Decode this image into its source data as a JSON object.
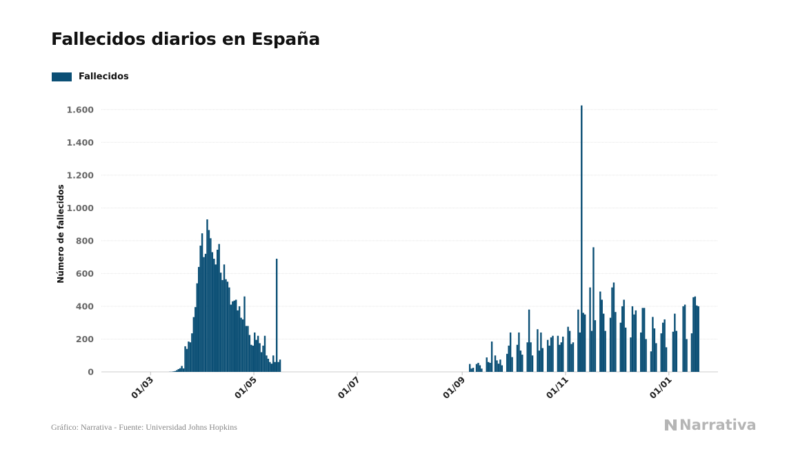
{
  "page": {
    "title": "Fallecidos diarios en España",
    "source": "Gráfico: Narrativa - Fuente: Universidad Johns Hopkins",
    "brand": "Narrativa"
  },
  "colors": {
    "bar": "#0b4f75",
    "grid": "#e4e4e4",
    "tick_text": "#666666",
    "brand": "#b5b5b5"
  },
  "chart_data": {
    "type": "bar",
    "title": "Fallecidos diarios en España",
    "xlabel": "",
    "ylabel": "Número de fallecidos",
    "legend": "top-left",
    "grid": true,
    "ylim": [
      0,
      1700
    ],
    "yticks": [
      0,
      200,
      400,
      600,
      800,
      1000,
      1200,
      1400,
      1600
    ],
    "ytick_labels": [
      "0",
      "200",
      "400",
      "600",
      "800",
      "1.000",
      "1.200",
      "1.400",
      "1.600"
    ],
    "xlim": [
      "2020-02-01",
      "2021-01-30"
    ],
    "xticks": [
      {
        "date": "2020-03-01",
        "label": "01/03"
      },
      {
        "date": "2020-05-01",
        "label": "01/05"
      },
      {
        "date": "2020-07-01",
        "label": "01/07"
      },
      {
        "date": "2020-09-01",
        "label": "01/09"
      },
      {
        "date": "2020-11-01",
        "label": "01/11"
      },
      {
        "date": "2021-01-01",
        "label": "01/01"
      }
    ],
    "series": [
      {
        "name": "Fallecidos",
        "start_date": "2020-02-01",
        "values": [
          0,
          0,
          0,
          0,
          0,
          0,
          0,
          0,
          0,
          0,
          0,
          0,
          0,
          0,
          0,
          0,
          0,
          0,
          0,
          0,
          0,
          0,
          0,
          0,
          0,
          0,
          0,
          0,
          0,
          0,
          0,
          0,
          0,
          0,
          0,
          0,
          0,
          0,
          0,
          0,
          1,
          1,
          3,
          5,
          10,
          17,
          22,
          36,
          21,
          156,
          140,
          185,
          180,
          235,
          334,
          395,
          540,
          640,
          770,
          845,
          700,
          720,
          930,
          865,
          815,
          730,
          690,
          655,
          745,
          780,
          605,
          560,
          655,
          565,
          550,
          515,
          410,
          430,
          435,
          440,
          375,
          400,
          330,
          320,
          460,
          280,
          280,
          225,
          165,
          160,
          240,
          195,
          220,
          175,
          120,
          160,
          220,
          100,
          80,
          60,
          50,
          100,
          60,
          690,
          60,
          75,
          0,
          0,
          0,
          0,
          0,
          0,
          0,
          0,
          0,
          0,
          0,
          0,
          0,
          0,
          0,
          0,
          0,
          0,
          0,
          0,
          0,
          0,
          0,
          0,
          0,
          0,
          0,
          0,
          0,
          0,
          0,
          0,
          0,
          0,
          0,
          0,
          0,
          0,
          0,
          0,
          0,
          0,
          0,
          0,
          0,
          0,
          0,
          0,
          0,
          0,
          0,
          0,
          0,
          0,
          0,
          0,
          0,
          0,
          0,
          0,
          0,
          0,
          0,
          0,
          0,
          0,
          0,
          0,
          0,
          0,
          0,
          0,
          0,
          0,
          0,
          0,
          0,
          0,
          0,
          0,
          0,
          0,
          0,
          0,
          0,
          0,
          0,
          0,
          0,
          0,
          0,
          0,
          0,
          0,
          0,
          0,
          0,
          0,
          0,
          0,
          0,
          0,
          0,
          0,
          0,
          0,
          0,
          0,
          0,
          0,
          0,
          48,
          20,
          25,
          0,
          48,
          55,
          40,
          20,
          0,
          0,
          88,
          60,
          55,
          185,
          0,
          100,
          70,
          50,
          75,
          40,
          0,
          0,
          110,
          160,
          240,
          90,
          0,
          0,
          165,
          240,
          130,
          105,
          0,
          0,
          180,
          380,
          180,
          100,
          0,
          0,
          260,
          130,
          240,
          145,
          0,
          0,
          195,
          160,
          210,
          220,
          0,
          0,
          220,
          165,
          180,
          215,
          0,
          0,
          275,
          250,
          170,
          180,
          0,
          0,
          380,
          240,
          1625,
          360,
          350,
          0,
          0,
          515,
          250,
          760,
          315,
          0,
          0,
          490,
          440,
          355,
          250,
          0,
          0,
          330,
          515,
          545,
          365,
          0,
          0,
          300,
          400,
          440,
          270,
          0,
          0,
          210,
          400,
          350,
          375,
          0,
          0,
          240,
          390,
          390,
          200,
          0,
          0,
          125,
          335,
          265,
          175,
          0,
          0,
          235,
          300,
          320,
          150,
          0,
          0,
          0,
          245,
          355,
          250,
          0,
          0,
          0,
          400,
          410,
          200,
          0,
          0,
          235,
          455,
          460,
          405,
          400
        ]
      }
    ]
  }
}
